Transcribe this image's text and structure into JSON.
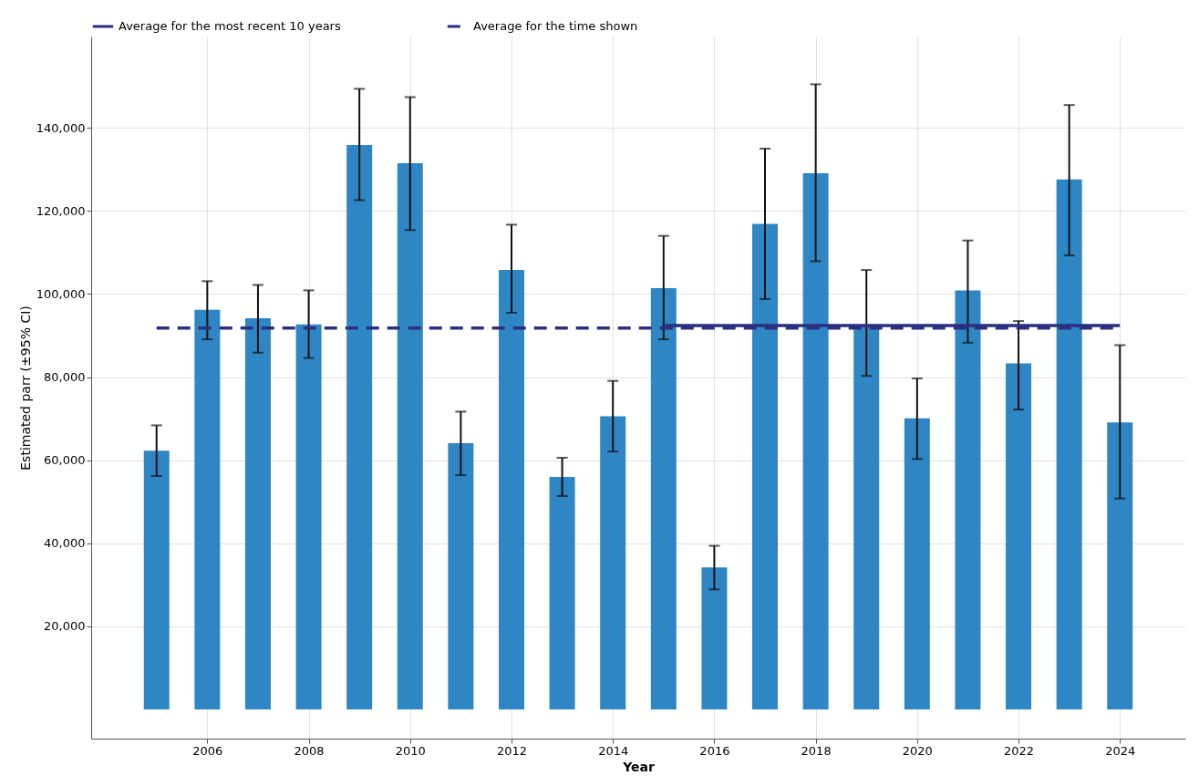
{
  "chart_data": {
    "type": "bar",
    "xlabel": "Year",
    "ylabel": "Estimated parr (±95% CI)",
    "x": [
      2005,
      2006,
      2007,
      2008,
      2009,
      2010,
      2011,
      2012,
      2013,
      2014,
      2015,
      2016,
      2017,
      2018,
      2019,
      2020,
      2021,
      2022,
      2023,
      2024
    ],
    "series": [
      {
        "color": "#2f86c4",
        "values": [
          62300,
          96200,
          94200,
          92700,
          135900,
          131500,
          64100,
          105800,
          56000,
          70600,
          101400,
          34200,
          116900,
          129100,
          92400,
          70100,
          100900,
          83300,
          127600,
          69100
        ],
        "errors": [
          [
            56200,
            68400
          ],
          [
            89100,
            103100
          ],
          [
            85900,
            102200
          ],
          [
            84600,
            100900
          ],
          [
            122600,
            149400
          ],
          [
            115400,
            147400
          ],
          [
            56400,
            71700
          ],
          [
            95500,
            116700
          ],
          [
            51400,
            60600
          ],
          [
            62100,
            79100
          ],
          [
            89100,
            114000
          ],
          [
            28900,
            39400
          ],
          [
            98800,
            135000
          ],
          [
            107900,
            150500
          ],
          [
            80300,
            105800
          ],
          [
            60300,
            79700
          ],
          [
            88300,
            112900
          ],
          [
            72200,
            93500
          ],
          [
            109300,
            145500
          ],
          [
            50800,
            87700
          ]
        ]
      },
      {
        "type": "line",
        "name": "Average for the most recent 10 years",
        "color": "#2b2f7f",
        "line_style": "solid",
        "x": [
          2015,
          2024
        ],
        "values": [
          92400,
          92400
        ]
      },
      {
        "type": "line",
        "name": "Average for the time shown",
        "color": "#2b2f7f",
        "line_style": "dashed",
        "x": [
          2005,
          2024
        ],
        "values": [
          91800,
          91800
        ]
      }
    ],
    "xlim": [
      2003.8,
      2025.2
    ],
    "xticks": [
      2006,
      2008,
      2010,
      2012,
      2014,
      2016,
      2018,
      2020,
      2022,
      2024
    ],
    "ylim": [
      -7000,
      162000
    ],
    "yticks": [
      {
        "value": 20000,
        "label": "20,000"
      },
      {
        "value": 40000,
        "label": "40,000"
      },
      {
        "value": 60000,
        "label": "60,000"
      },
      {
        "value": 80000,
        "label": "80,000"
      },
      {
        "value": 100000,
        "label": "100,000"
      },
      {
        "value": 120000,
        "label": "120,000"
      },
      {
        "value": 140000,
        "label": "140,000"
      }
    ],
    "grid": true,
    "legend": "top left"
  }
}
